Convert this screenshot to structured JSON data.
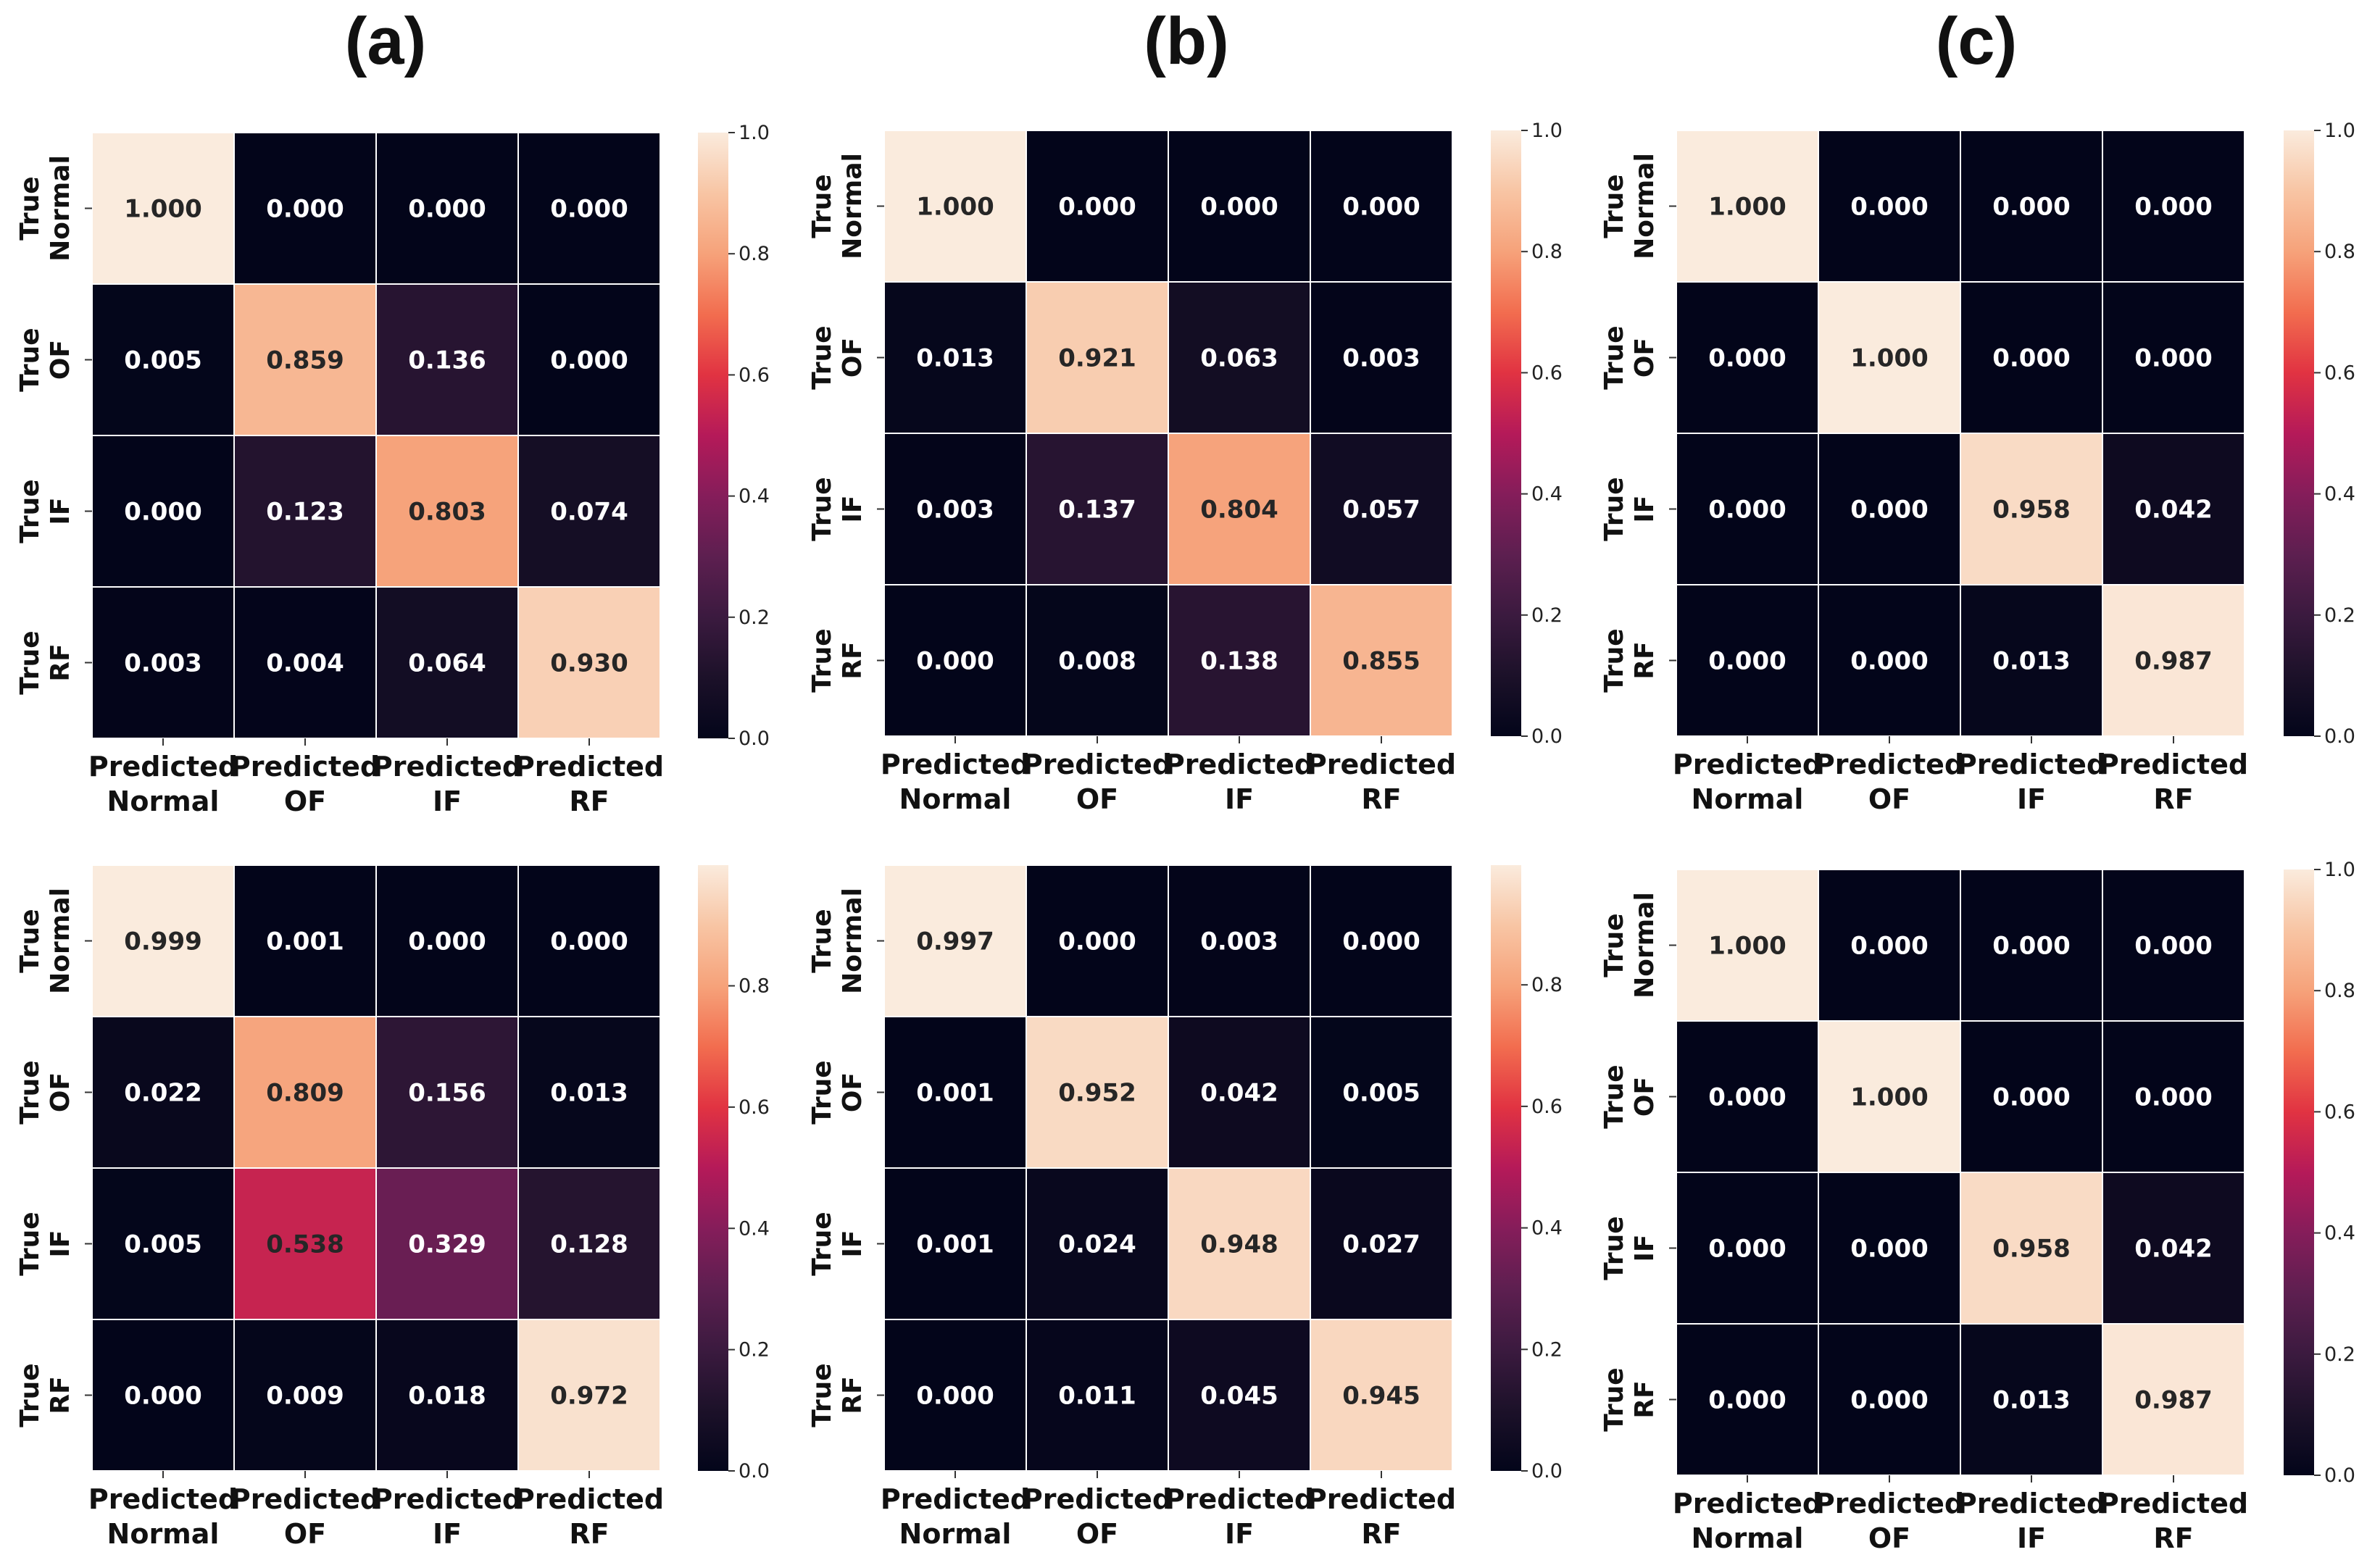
{
  "panel_labels": [
    "(a)",
    "(b)",
    "(c)"
  ],
  "colors": {
    "cell_border": "#ffffff",
    "text_light": "#ffffff",
    "text_dark": "#262626",
    "colormap": "rocket"
  },
  "chart_data": [
    {
      "type": "heatmap",
      "panel": "(a)",
      "row": "top",
      "row_labels": [
        [
          "True",
          "Normal"
        ],
        [
          "True",
          "OF"
        ],
        [
          "True",
          "IF"
        ],
        [
          "True",
          "RF"
        ]
      ],
      "col_labels": [
        [
          "Predicted",
          "Normal"
        ],
        [
          "Predicted",
          "OF"
        ],
        [
          "Predicted",
          "IF"
        ],
        [
          "Predicted",
          "RF"
        ]
      ],
      "values": [
        [
          1.0,
          0.0,
          0.0,
          0.0
        ],
        [
          0.005,
          0.859,
          0.136,
          0.0
        ],
        [
          0.0,
          0.123,
          0.803,
          0.074
        ],
        [
          0.003,
          0.004,
          0.064,
          0.93
        ]
      ],
      "labels": [
        [
          "1.000",
          "0.000",
          "0.000",
          "0.000"
        ],
        [
          "0.005",
          "0.859",
          "0.136",
          "0.000"
        ],
        [
          "0.000",
          "0.123",
          "0.803",
          "0.074"
        ],
        [
          "0.003",
          "0.004",
          "0.064",
          "0.930"
        ]
      ],
      "vmin": 0.0,
      "vmax": 1.0,
      "colorbar_ticks": [
        "0.0",
        "0.2",
        "0.4",
        "0.6",
        "0.8",
        "1.0"
      ]
    },
    {
      "type": "heatmap",
      "panel": "(b)",
      "row": "top",
      "row_labels": [
        [
          "True",
          "Normal"
        ],
        [
          "True",
          "OF"
        ],
        [
          "True",
          "IF"
        ],
        [
          "True",
          "RF"
        ]
      ],
      "col_labels": [
        [
          "Predicted",
          "Normal"
        ],
        [
          "Predicted",
          "OF"
        ],
        [
          "Predicted",
          "IF"
        ],
        [
          "Predicted",
          "RF"
        ]
      ],
      "values": [
        [
          1.0,
          0.0,
          0.0,
          0.0
        ],
        [
          0.013,
          0.921,
          0.063,
          0.003
        ],
        [
          0.003,
          0.137,
          0.804,
          0.057
        ],
        [
          0.0,
          0.008,
          0.138,
          0.855
        ]
      ],
      "labels": [
        [
          "1.000",
          "0.000",
          "0.000",
          "0.000"
        ],
        [
          "0.013",
          "0.921",
          "0.063",
          "0.003"
        ],
        [
          "0.003",
          "0.137",
          "0.804",
          "0.057"
        ],
        [
          "0.000",
          "0.008",
          "0.138",
          "0.855"
        ]
      ],
      "vmin": 0.0,
      "vmax": 1.0,
      "colorbar_ticks": [
        "0.0",
        "0.2",
        "0.4",
        "0.6",
        "0.8",
        "1.0"
      ]
    },
    {
      "type": "heatmap",
      "panel": "(c)",
      "row": "top",
      "row_labels": [
        [
          "True",
          "Normal"
        ],
        [
          "True",
          "OF"
        ],
        [
          "True",
          "IF"
        ],
        [
          "True",
          "RF"
        ]
      ],
      "col_labels": [
        [
          "Predicted",
          "Normal"
        ],
        [
          "Predicted",
          "OF"
        ],
        [
          "Predicted",
          "IF"
        ],
        [
          "Predicted",
          "RF"
        ]
      ],
      "values": [
        [
          1.0,
          0.0,
          0.0,
          0.0
        ],
        [
          0.0,
          1.0,
          0.0,
          0.0
        ],
        [
          0.0,
          0.0,
          0.958,
          0.042
        ],
        [
          0.0,
          0.0,
          0.013,
          0.987
        ]
      ],
      "labels": [
        [
          "1.000",
          "0.000",
          "0.000",
          "0.000"
        ],
        [
          "0.000",
          "1.000",
          "0.000",
          "0.000"
        ],
        [
          "0.000",
          "0.000",
          "0.958",
          "0.042"
        ],
        [
          "0.000",
          "0.000",
          "0.013",
          "0.987"
        ]
      ],
      "vmin": 0.0,
      "vmax": 1.0,
      "colorbar_ticks": [
        "0.0",
        "0.2",
        "0.4",
        "0.6",
        "0.8",
        "1.0"
      ]
    },
    {
      "type": "heatmap",
      "panel": "(a)",
      "row": "bottom",
      "row_labels": [
        [
          "True",
          "Normal"
        ],
        [
          "True",
          "OF"
        ],
        [
          "True",
          "IF"
        ],
        [
          "True",
          "RF"
        ]
      ],
      "col_labels": [
        [
          "Predicted",
          "Normal"
        ],
        [
          "Predicted",
          "OF"
        ],
        [
          "Predicted",
          "IF"
        ],
        [
          "Predicted",
          "RF"
        ]
      ],
      "values": [
        [
          0.999,
          0.001,
          0.0,
          0.0
        ],
        [
          0.022,
          0.809,
          0.156,
          0.013
        ],
        [
          0.005,
          0.538,
          0.329,
          0.128
        ],
        [
          0.0,
          0.009,
          0.018,
          0.972
        ]
      ],
      "labels": [
        [
          "0.999",
          "0.001",
          "0.000",
          "0.000"
        ],
        [
          "0.022",
          "0.809",
          "0.156",
          "0.013"
        ],
        [
          "0.005",
          "0.538",
          "0.329",
          "0.128"
        ],
        [
          "0.000",
          "0.009",
          "0.018",
          "0.972"
        ]
      ],
      "vmin": 0.0,
      "vmax": 0.999,
      "colorbar_ticks": [
        "0.0",
        "0.2",
        "0.4",
        "0.6",
        "0.8"
      ]
    },
    {
      "type": "heatmap",
      "panel": "(b)",
      "row": "bottom",
      "row_labels": [
        [
          "True",
          "Normal"
        ],
        [
          "True",
          "OF"
        ],
        [
          "True",
          "IF"
        ],
        [
          "True",
          "RF"
        ]
      ],
      "col_labels": [
        [
          "Predicted",
          "Normal"
        ],
        [
          "Predicted",
          "OF"
        ],
        [
          "Predicted",
          "IF"
        ],
        [
          "Predicted",
          "RF"
        ]
      ],
      "values": [
        [
          0.997,
          0.0,
          0.003,
          0.0
        ],
        [
          0.001,
          0.952,
          0.042,
          0.005
        ],
        [
          0.001,
          0.024,
          0.948,
          0.027
        ],
        [
          0.0,
          0.011,
          0.045,
          0.945
        ]
      ],
      "labels": [
        [
          "0.997",
          "0.000",
          "0.003",
          "0.000"
        ],
        [
          "0.001",
          "0.952",
          "0.042",
          "0.005"
        ],
        [
          "0.001",
          "0.024",
          "0.948",
          "0.027"
        ],
        [
          "0.000",
          "0.011",
          "0.045",
          "0.945"
        ]
      ],
      "vmin": 0.0,
      "vmax": 0.997,
      "colorbar_ticks": [
        "0.0",
        "0.2",
        "0.4",
        "0.6",
        "0.8"
      ]
    },
    {
      "type": "heatmap",
      "panel": "(c)",
      "row": "bottom",
      "row_labels": [
        [
          "True",
          "Normal"
        ],
        [
          "True",
          "OF"
        ],
        [
          "True",
          "IF"
        ],
        [
          "True",
          "RF"
        ]
      ],
      "col_labels": [
        [
          "Predicted",
          "Normal"
        ],
        [
          "Predicted",
          "OF"
        ],
        [
          "Predicted",
          "IF"
        ],
        [
          "Predicted",
          "RF"
        ]
      ],
      "values": [
        [
          1.0,
          0.0,
          0.0,
          0.0
        ],
        [
          0.0,
          1.0,
          0.0,
          0.0
        ],
        [
          0.0,
          0.0,
          0.958,
          0.042
        ],
        [
          0.0,
          0.0,
          0.013,
          0.987
        ]
      ],
      "labels": [
        [
          "1.000",
          "0.000",
          "0.000",
          "0.000"
        ],
        [
          "0.000",
          "1.000",
          "0.000",
          "0.000"
        ],
        [
          "0.000",
          "0.000",
          "0.958",
          "0.042"
        ],
        [
          "0.000",
          "0.000",
          "0.013",
          "0.987"
        ]
      ],
      "vmin": 0.0,
      "vmax": 1.0,
      "colorbar_ticks": [
        "0.0",
        "0.2",
        "0.4",
        "0.6",
        "0.8",
        "1.0"
      ]
    }
  ]
}
